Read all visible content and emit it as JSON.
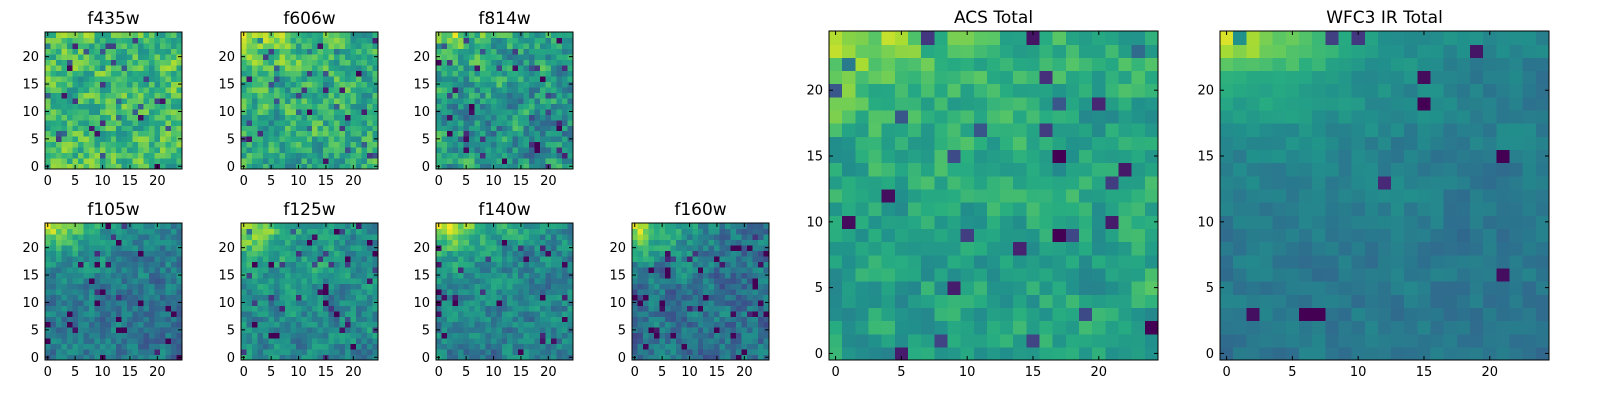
{
  "figure": {
    "colormap": "viridis",
    "colors": {
      "low": "#440154",
      "mid": "#21918c",
      "high": "#fde725",
      "axis": "#000000",
      "background": "#ffffff"
    }
  },
  "chart_data": [
    {
      "type": "heatmap",
      "title": "f435w",
      "grid_size": [
        25,
        25
      ],
      "xlim": [
        0,
        24
      ],
      "ylim": [
        0,
        24
      ],
      "x_ticks": [
        0,
        5,
        10,
        15,
        20
      ],
      "y_ticks": [
        0,
        5,
        10,
        15,
        20
      ],
      "y_origin": "bottom",
      "colormap": "viridis",
      "value_range": [
        0,
        1
      ],
      "field": {
        "base": 0.68,
        "seed": 11,
        "noise": 0.3,
        "corner_boost": 0.04,
        "holes": 0.06
      }
    },
    {
      "type": "heatmap",
      "title": "f606w",
      "grid_size": [
        25,
        25
      ],
      "xlim": [
        0,
        24
      ],
      "ylim": [
        0,
        24
      ],
      "x_ticks": [
        0,
        5,
        10,
        15,
        20
      ],
      "y_ticks": [
        0,
        5,
        10,
        15,
        20
      ],
      "y_origin": "bottom",
      "colormap": "viridis",
      "value_range": [
        0,
        1
      ],
      "field": {
        "base": 0.62,
        "seed": 23,
        "noise": 0.3,
        "corner_boost": 0.3,
        "holes": 0.05
      }
    },
    {
      "type": "heatmap",
      "title": "f814w",
      "grid_size": [
        25,
        25
      ],
      "xlim": [
        0,
        24
      ],
      "ylim": [
        0,
        24
      ],
      "x_ticks": [
        0,
        5,
        10,
        15,
        20
      ],
      "y_ticks": [
        0,
        5,
        10,
        15,
        20
      ],
      "y_origin": "bottom",
      "colormap": "viridis",
      "value_range": [
        0,
        1
      ],
      "field": {
        "base": 0.52,
        "seed": 37,
        "noise": 0.32,
        "corner_boost": 0.45,
        "holes": 0.07
      }
    },
    {
      "type": "heatmap",
      "title": "f105w",
      "grid_size": [
        25,
        25
      ],
      "xlim": [
        0,
        24
      ],
      "ylim": [
        0,
        24
      ],
      "x_ticks": [
        0,
        5,
        10,
        15,
        20
      ],
      "y_ticks": [
        0,
        5,
        10,
        15,
        20
      ],
      "y_origin": "bottom",
      "colormap": "viridis",
      "value_range": [
        0,
        1
      ],
      "field": {
        "base": 0.4,
        "seed": 41,
        "noise": 0.22,
        "corner_boost": 0.6,
        "holes": 0.05
      }
    },
    {
      "type": "heatmap",
      "title": "f125w",
      "grid_size": [
        25,
        25
      ],
      "xlim": [
        0,
        24
      ],
      "ylim": [
        0,
        24
      ],
      "x_ticks": [
        0,
        5,
        10,
        15,
        20
      ],
      "y_ticks": [
        0,
        5,
        10,
        15,
        20
      ],
      "y_origin": "bottom",
      "colormap": "viridis",
      "value_range": [
        0,
        1
      ],
      "field": {
        "base": 0.47,
        "seed": 53,
        "noise": 0.24,
        "corner_boost": 0.55,
        "holes": 0.04
      }
    },
    {
      "type": "heatmap",
      "title": "f140w",
      "grid_size": [
        25,
        25
      ],
      "xlim": [
        0,
        24
      ],
      "ylim": [
        0,
        24
      ],
      "x_ticks": [
        0,
        5,
        10,
        15,
        20
      ],
      "y_ticks": [
        0,
        5,
        10,
        15,
        20
      ],
      "y_origin": "bottom",
      "colormap": "viridis",
      "value_range": [
        0,
        1
      ],
      "field": {
        "base": 0.44,
        "seed": 67,
        "noise": 0.24,
        "corner_boost": 0.6,
        "holes": 0.05
      }
    },
    {
      "type": "heatmap",
      "title": "f160w",
      "grid_size": [
        25,
        25
      ],
      "xlim": [
        0,
        24
      ],
      "ylim": [
        0,
        24
      ],
      "x_ticks": [
        0,
        5,
        10,
        15,
        20
      ],
      "y_ticks": [
        0,
        5,
        10,
        15,
        20
      ],
      "y_origin": "bottom",
      "colormap": "viridis",
      "value_range": [
        0,
        1
      ],
      "field": {
        "base": 0.36,
        "seed": 79,
        "noise": 0.24,
        "corner_boost": 0.65,
        "holes": 0.07
      }
    },
    {
      "type": "heatmap",
      "title": "ACS Total",
      "grid_size": [
        25,
        25
      ],
      "xlim": [
        0,
        24
      ],
      "ylim": [
        0,
        24
      ],
      "x_ticks": [
        0,
        5,
        10,
        15,
        20
      ],
      "y_ticks": [
        0,
        5,
        10,
        15,
        20
      ],
      "y_origin": "bottom",
      "colormap": "viridis",
      "value_range": [
        0,
        1
      ],
      "field": {
        "base": 0.58,
        "seed": 97,
        "noise": 0.2,
        "corner_boost": 0.38,
        "holes": 0.04
      }
    },
    {
      "type": "heatmap",
      "title": "WFC3 IR Total",
      "grid_size": [
        25,
        25
      ],
      "xlim": [
        0,
        24
      ],
      "ylim": [
        0,
        24
      ],
      "x_ticks": [
        0,
        5,
        10,
        15,
        20
      ],
      "y_ticks": [
        0,
        5,
        10,
        15,
        20
      ],
      "y_origin": "bottom",
      "colormap": "viridis",
      "value_range": [
        0,
        1
      ],
      "field": {
        "base": 0.4,
        "seed": 113,
        "noise": 0.1,
        "corner_boost": 0.62,
        "holes": 0.02
      }
    }
  ]
}
